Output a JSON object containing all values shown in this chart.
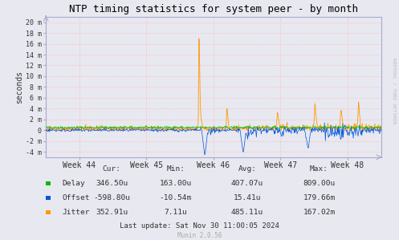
{
  "title": "NTP timing statistics for system peer - by month",
  "ylabel": "seconds",
  "background_color": "#e8e8f0",
  "plot_bg_color": "#e8e8f0",
  "grid_color": "#ffaaaa",
  "ylim": [
    -5,
    21
  ],
  "yticks": [
    -4,
    -2,
    0,
    2,
    4,
    6,
    8,
    10,
    12,
    14,
    16,
    18,
    20
  ],
  "ytick_labels": [
    "-4 m",
    "-2 m",
    "0",
    "2 m",
    "4 m",
    "6 m",
    "8 m",
    "10 m",
    "12 m",
    "14 m",
    "16 m",
    "18 m",
    "20 m"
  ],
  "week_labels": [
    "Week 44",
    "Week 45",
    "Week 46",
    "Week 47",
    "Week 48"
  ],
  "delay_color": "#00bb00",
  "offset_color": "#0055dd",
  "jitter_color": "#ff9900",
  "legend_items": [
    {
      "label": "Delay",
      "color": "#00bb00"
    },
    {
      "label": "Offset",
      "color": "#0055dd"
    },
    {
      "label": "Jitter",
      "color": "#ff9900"
    }
  ],
  "table_headers": [
    "Cur:",
    "Min:",
    "Avg:",
    "Max:"
  ],
  "table_data": [
    [
      "346.50u",
      "163.00u",
      "407.07u",
      "809.00u"
    ],
    [
      "-598.80u",
      "-10.54m",
      "15.41u",
      "179.66m"
    ],
    [
      "352.91u",
      "7.11u",
      "485.11u",
      "167.02m"
    ]
  ],
  "last_update": "Last update: Sat Nov 30 11:00:05 2024",
  "munin_version": "Munin 2.0.56",
  "watermark": "RRDTOOL / TOBI OETIKER"
}
